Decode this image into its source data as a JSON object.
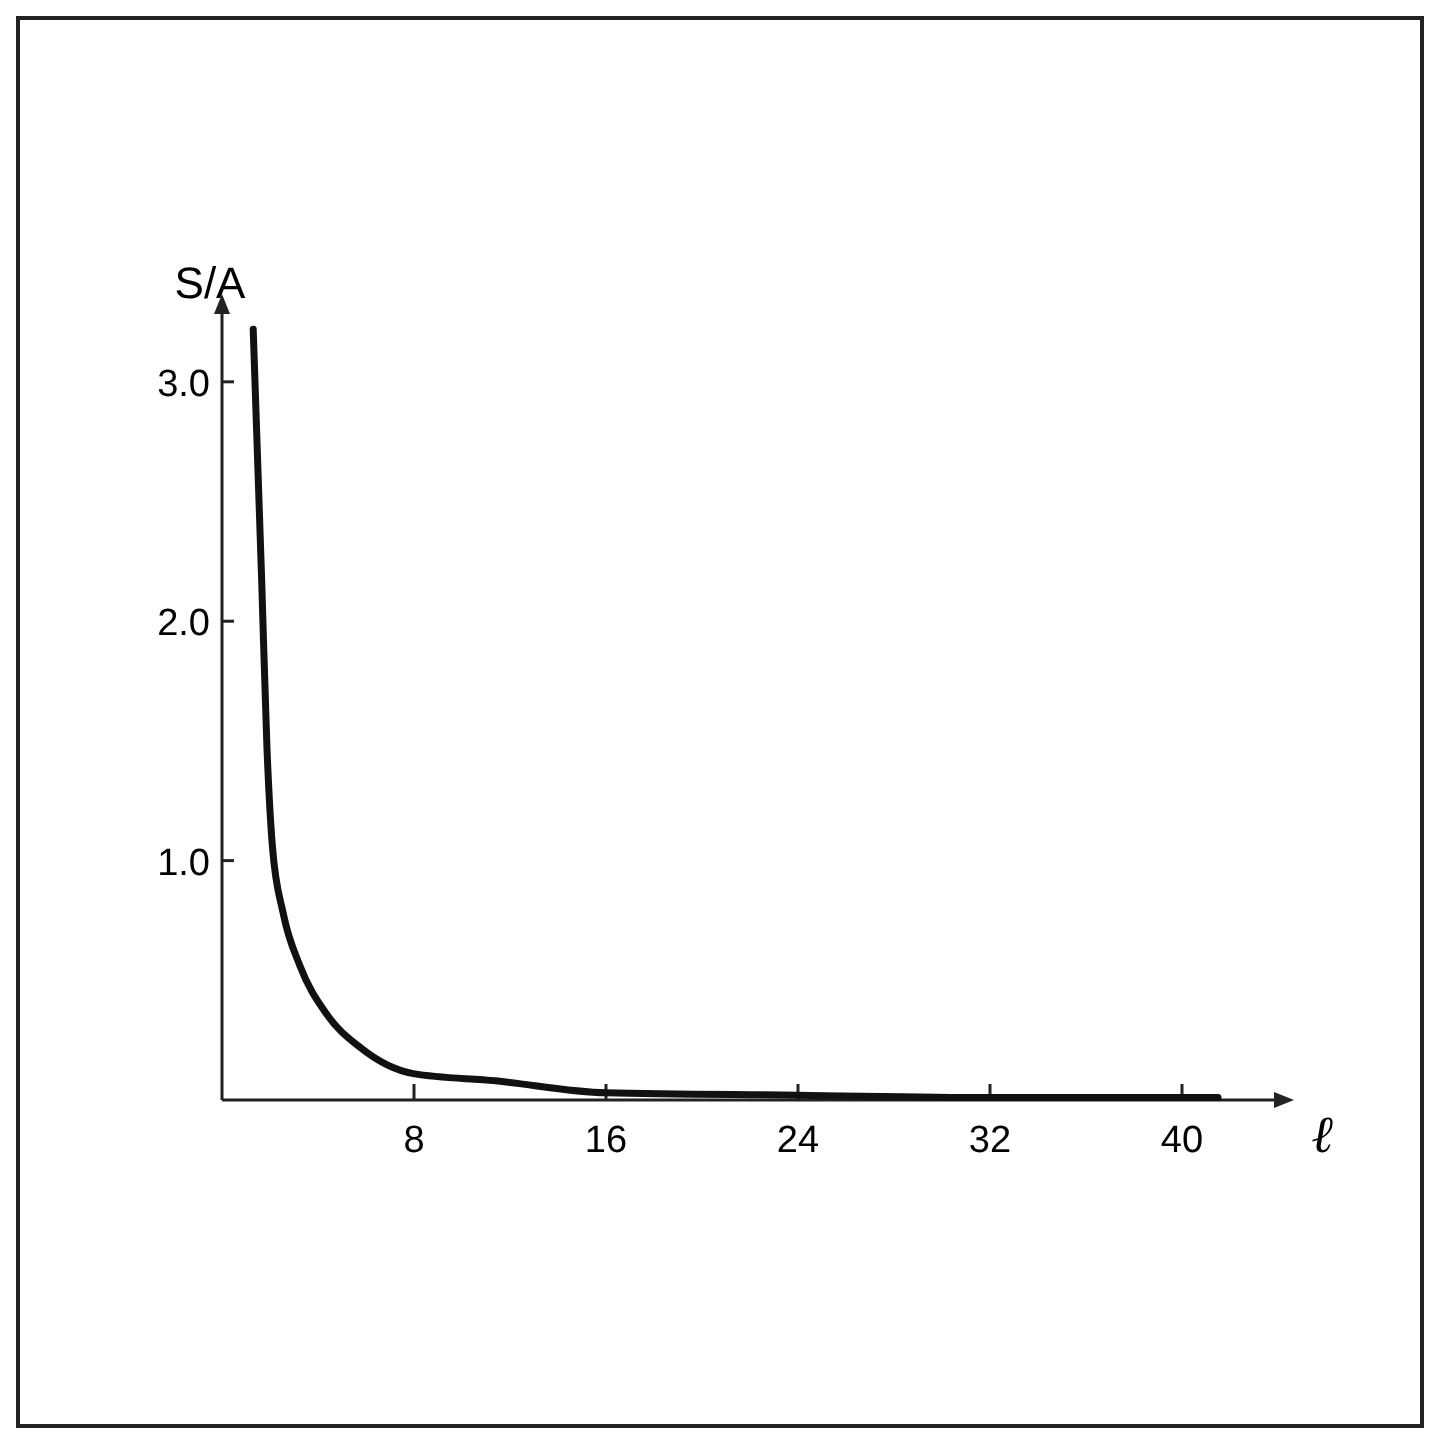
{
  "chart_data": {
    "type": "line",
    "xlabel": "ℓ",
    "ylabel": "S/A",
    "x": [
      1.3,
      1.65,
      1.87,
      2.1,
      2.55,
      3.25,
      4.35,
      5.75,
      7.97,
      11.4,
      16,
      24,
      32,
      41.5
    ],
    "series": [
      {
        "color": "#111111",
        "values": [
          3.22,
          2.18,
          1.48,
          1.06,
          0.78,
          0.56,
          0.36,
          0.22,
          0.11,
          0.08,
          0.03,
          0.02,
          0.01,
          0.01
        ]
      }
    ],
    "xlim": [
      0,
      44
    ],
    "ylim": [
      0,
      3.3
    ],
    "xticks": [
      8,
      16,
      24,
      32,
      40
    ],
    "yticks": [
      {
        "value": 1,
        "label": "1.0"
      },
      {
        "value": 2,
        "label": "2.0"
      },
      {
        "value": 3,
        "label": "3.0"
      }
    ],
    "grid": false,
    "marker": "none",
    "line_style": "solid"
  }
}
